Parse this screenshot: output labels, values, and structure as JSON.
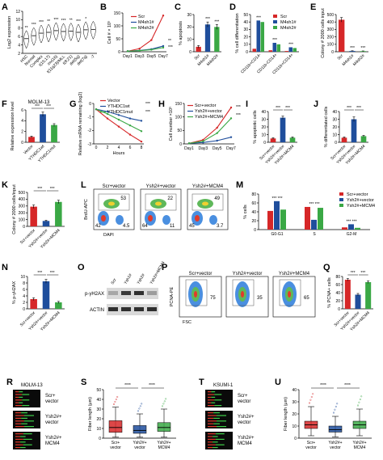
{
  "colors": {
    "red": "#d62728",
    "blue": "#1f4e9c",
    "green": "#3aa845",
    "black": "#000000",
    "gray": "#444444"
  },
  "panels": {
    "A": {
      "letter": "A",
      "ylabel": "Log2 expression",
      "ylim": [
        2,
        12
      ],
      "yticks": [
        "2",
        "4",
        "6",
        "8",
        "10",
        "12"
      ],
      "groups": [
        "HSC",
        "Normal",
        "Complex",
        "t(15;17)",
        "inv(16)",
        "t(11q23)/MLL",
        "t(8;21)",
        "del(5q)",
        "del(7q)",
        "-7"
      ],
      "medians": [
        5.5,
        6.2,
        6.8,
        7.0,
        7.4,
        7.2,
        7.3,
        7.0,
        7.6,
        7.7
      ],
      "stars": [
        "**",
        "***",
        "***",
        "**",
        "***",
        "***",
        "**",
        "***",
        "*",
        ""
      ]
    },
    "B": {
      "letter": "B",
      "ylabel": "Cell # × 10⁵",
      "ylim": [
        0,
        150
      ],
      "yticks": [
        "0",
        "50",
        "100",
        "150"
      ],
      "categories": [
        "Day1",
        "Day3",
        "Day5",
        "Day7"
      ],
      "legend": [
        "Scr",
        "M4sh1#",
        "M4sh2#"
      ],
      "series": [
        {
          "name": "Scr",
          "values": [
            2,
            12,
            45,
            140
          ]
        },
        {
          "name": "M4sh1#",
          "values": [
            2,
            5,
            10,
            22
          ]
        },
        {
          "name": "M4sh2#",
          "values": [
            2,
            4,
            8,
            16
          ]
        }
      ],
      "stars": [
        "**",
        "***"
      ]
    },
    "C": {
      "letter": "C",
      "ylabel": "% apoptosis",
      "ylim": [
        0,
        30
      ],
      "yticks": [
        "0",
        "10",
        "20",
        "30"
      ],
      "categories": [
        "Scr",
        "M4sh1#",
        "M4sh2#"
      ],
      "values": [
        4,
        22,
        20
      ],
      "errors": [
        1,
        2,
        2
      ],
      "stars": [
        "***",
        "***"
      ]
    },
    "D": {
      "letter": "D",
      "ylabel": "% cell differentiation",
      "ylim": [
        0,
        50
      ],
      "yticks": [
        "0",
        "10",
        "20",
        "30",
        "40",
        "50"
      ],
      "categories": [
        "CD11b+CD14-",
        "CD11b-CD14+",
        "CD11b+CD14+"
      ],
      "legend": [
        "Scr",
        "M4sh1#",
        "M4sh2#"
      ],
      "series": [
        {
          "name": "Scr",
          "values": [
            4,
            2,
            1
          ]
        },
        {
          "name": "M4sh1#",
          "values": [
            42,
            12,
            6
          ]
        },
        {
          "name": "M4sh2#",
          "values": [
            40,
            10,
            5
          ]
        }
      ],
      "stars": [
        "***",
        "***",
        "***",
        "***",
        "***",
        "***"
      ]
    },
    "E": {
      "letter": "E",
      "ylabel": "Colony # 2000 cells input",
      "ylim": [
        0,
        500
      ],
      "yticks": [
        "0",
        "100",
        "200",
        "300",
        "400",
        "500"
      ],
      "categories": [
        "Scr",
        "M4sh1#",
        "M4sh2#"
      ],
      "values": [
        430,
        10,
        8
      ],
      "errors": [
        30,
        3,
        3
      ],
      "stars": [
        "***",
        "***"
      ]
    },
    "F": {
      "letter": "F",
      "title": "MOLM-13",
      "ylabel": "Relative expression level",
      "ylim": [
        0,
        6
      ],
      "yticks": [
        "0",
        "2",
        "4",
        "6"
      ],
      "categories": [
        "Vector",
        "YTHDC1wt",
        "YTHDC1mut"
      ],
      "values": [
        1,
        5.2,
        3.2
      ],
      "errors": [
        0.15,
        0.4,
        0.25
      ],
      "stars": [
        "***",
        "***"
      ]
    },
    "G": {
      "letter": "G",
      "ylabel": "Relative mRNA remaining (log2)",
      "xlabel": "Hours",
      "ylim": [
        -3,
        0.5
      ],
      "yticks": [
        "-3",
        "-2",
        "-1",
        "0"
      ],
      "x": [
        0,
        2,
        4,
        6,
        8
      ],
      "xticks": [
        "0",
        "2",
        "4",
        "6",
        "8"
      ],
      "legend": [
        "Vector",
        "YTHDC1wt",
        "YTHDC1mut"
      ],
      "series": [
        {
          "name": "Vector",
          "values": [
            0,
            -0.8,
            -1.5,
            -2.2,
            -2.8
          ]
        },
        {
          "name": "YTHDC1wt",
          "values": [
            0,
            -0.2,
            -0.5,
            -0.8,
            -1.0
          ]
        },
        {
          "name": "YTHDC1mut",
          "values": [
            0,
            -0.4,
            -0.9,
            -1.4,
            -1.9
          ]
        }
      ],
      "stars": [
        "***",
        "***"
      ]
    },
    "H": {
      "letter": "H",
      "ylabel": "Cell number ×10⁵",
      "ylim": [
        0,
        150
      ],
      "yticks": [
        "0",
        "50",
        "100",
        "150"
      ],
      "categories": [
        "Day1",
        "Day3",
        "Day5",
        "Day7"
      ],
      "legend": [
        "Scr+vector",
        "Ysh2#+vector",
        "Ysh2#+MCM4"
      ],
      "series": [
        {
          "name": "Scr+vector",
          "values": [
            2,
            15,
            60,
            135
          ]
        },
        {
          "name": "Ysh2#+vector",
          "values": [
            2,
            5,
            12,
            25
          ]
        },
        {
          "name": "Ysh2#+MCM4",
          "values": [
            2,
            10,
            40,
            95
          ]
        }
      ],
      "stars": [
        "***",
        "***"
      ]
    },
    "I": {
      "letter": "I",
      "ylabel": "% apoptotic cells",
      "ylim": [
        0,
        40
      ],
      "yticks": [
        "0",
        "10",
        "20",
        "30",
        "40"
      ],
      "categories": [
        "Scr+vector",
        "Ysh2#+vector",
        "Ysh2#+MCM4"
      ],
      "values": [
        5,
        32,
        6
      ],
      "errors": [
        1,
        2,
        1
      ],
      "stars": [
        "***",
        "***"
      ]
    },
    "J": {
      "letter": "J",
      "ylabel": "% differentiated cells",
      "ylim": [
        0,
        40
      ],
      "yticks": [
        "0",
        "10",
        "20",
        "30",
        "40"
      ],
      "categories": [
        "Scr+vector",
        "Ysh2#+vector",
        "Ysh2#+MCM4"
      ],
      "values": [
        6,
        30,
        8
      ],
      "errors": [
        1,
        3,
        1
      ],
      "stars": [
        "***",
        "***"
      ]
    },
    "K": {
      "letter": "K",
      "ylabel": "Colony # 2000 cells/input",
      "ylim": [
        0,
        500
      ],
      "yticks": [
        "0",
        "100",
        "200",
        "300",
        "400",
        "500"
      ],
      "categories": [
        "Scr+vector",
        "Ysh2#+vector",
        "Ysh2#+MCM4"
      ],
      "values": [
        290,
        80,
        360
      ],
      "errors": [
        25,
        10,
        25
      ],
      "stars": [
        "***",
        "***"
      ]
    },
    "L": {
      "letter": "L",
      "ylabel": "BrdU-APC",
      "xlabel": "DAPI",
      "plots": [
        {
          "name": "Scr+vector",
          "q": [
            "53",
            "42",
            "4.5"
          ]
        },
        {
          "name": "Ysh2#+vector",
          "q": [
            "22",
            "64",
            "11"
          ]
        },
        {
          "name": "Ysh2#+MCM4",
          "q": [
            "49",
            "45",
            "3.7"
          ]
        }
      ]
    },
    "M": {
      "letter": "M",
      "ylabel": "% cells",
      "ylim": [
        0,
        80
      ],
      "yticks": [
        "0",
        "20",
        "40",
        "60",
        "80"
      ],
      "categories": [
        "G0-G1",
        "S",
        "G2-M"
      ],
      "legend": [
        "Scr+vector",
        "Ysh2#+vector",
        "Ysh2#+MCM4"
      ],
      "series": [
        {
          "name": "Scr+vector",
          "values": [
            42,
            51,
            5
          ]
        },
        {
          "name": "Ysh2#+vector",
          "values": [
            64,
            22,
            12
          ]
        },
        {
          "name": "Ysh2#+MCM4",
          "values": [
            45,
            49,
            4
          ]
        }
      ],
      "stars": [
        "*** ***",
        "*** ***",
        "*** ***"
      ]
    },
    "N": {
      "letter": "N",
      "ylabel": "% p-γH2AX",
      "ylim": [
        0,
        10
      ],
      "yticks": [
        "0",
        "2",
        "4",
        "6",
        "8",
        "10"
      ],
      "categories": [
        "Scr+vector",
        "Ysh2#+vector",
        "Ysh2#+MCM4"
      ],
      "values": [
        3,
        8.5,
        2
      ],
      "errors": [
        0.4,
        0.6,
        0.3
      ],
      "stars": [
        "***",
        "***"
      ]
    },
    "O": {
      "letter": "O",
      "lanes": [
        "Scr",
        "Ysh1#",
        "Ysh2#",
        "Ysh2#+MCM4"
      ],
      "bands": [
        "p-γH2AX",
        "ACTIN"
      ]
    },
    "P": {
      "letter": "P",
      "ylabel": "PCNA-PE",
      "xlabel": "FSC",
      "plots": [
        {
          "name": "Scr+vector",
          "q": "75"
        },
        {
          "name": "Ysh2#+vector",
          "q": "35"
        },
        {
          "name": "Ysh2#+MCM4",
          "q": "65"
        }
      ]
    },
    "Q": {
      "letter": "Q",
      "ylabel": "% PCNA+ cells",
      "ylim": [
        0,
        80
      ],
      "yticks": [
        "0",
        "20",
        "40",
        "60",
        "80"
      ],
      "categories": [
        "Scr+vector",
        "Ysh2#+vector",
        "Ysh2#+MCM4"
      ],
      "values": [
        72,
        35,
        66
      ],
      "errors": [
        3,
        3,
        3
      ],
      "stars": [
        "***",
        "***"
      ]
    },
    "R": {
      "letter": "R",
      "title": "MOLM-13",
      "rows": [
        {
          "line1": "Scr+",
          "line2": "vector"
        },
        {
          "line1": "Ysh2#+",
          "line2": "vector"
        },
        {
          "line1": "Ysh2#+",
          "line2": "MCM4"
        }
      ]
    },
    "S": {
      "letter": "S",
      "ylabel": "Fiber length (μm)",
      "ylim": [
        0,
        50
      ],
      "yticks": [
        "0",
        "10",
        "20",
        "30",
        "40",
        "50"
      ],
      "categories": [
        {
          "line1": "Scr+",
          "line2": "vector"
        },
        {
          "line1": "Ysh2#+",
          "line2": "vector"
        },
        {
          "line1": "Ysh2#+",
          "line2": "MCM4"
        }
      ],
      "boxes": [
        {
          "q1": 6,
          "median": 11,
          "q3": 18,
          "lo": 1,
          "hi": 32
        },
        {
          "q1": 5,
          "median": 8,
          "q3": 13,
          "lo": 1,
          "hi": 25
        },
        {
          "q1": 7,
          "median": 11,
          "q3": 16,
          "lo": 1,
          "hi": 30
        }
      ],
      "stars": [
        "****",
        "****"
      ]
    },
    "T": {
      "letter": "T",
      "title": "KSUMI-1",
      "rows": [
        {
          "line1": "Scr+",
          "line2": "vector"
        },
        {
          "line1": "Ysh2#+",
          "line2": "vector"
        },
        {
          "line1": "Ysh2#+",
          "line2": "MCM4"
        }
      ]
    },
    "U": {
      "letter": "U",
      "ylabel": "Fiber length (μm)",
      "ylim": [
        0,
        40
      ],
      "yticks": [
        "0",
        "10",
        "20",
        "30",
        "40"
      ],
      "categories": [
        {
          "line1": "Scr+",
          "line2": "vector"
        },
        {
          "line1": "Ysh2#+",
          "line2": "vector"
        },
        {
          "line1": "Ysh2#+",
          "line2": "MCM4"
        }
      ],
      "boxes": [
        {
          "q1": 8,
          "median": 11,
          "q3": 14,
          "lo": 2,
          "hi": 26
        },
        {
          "q1": 5,
          "median": 7,
          "q3": 10,
          "lo": 1,
          "hi": 18
        },
        {
          "q1": 8,
          "median": 11,
          "q3": 14,
          "lo": 2,
          "hi": 24
        }
      ],
      "stars": [
        "****",
        "****"
      ]
    }
  }
}
